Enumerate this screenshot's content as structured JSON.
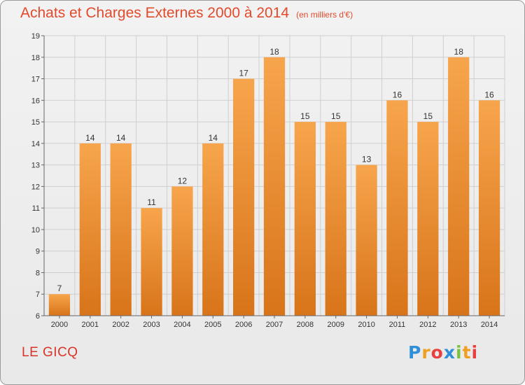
{
  "header": {
    "title": "Achats et Charges Externes 2000 à 2014",
    "unit": "(en milliers d'€)"
  },
  "commune": "LE GICQ",
  "logo": {
    "letters": [
      "P",
      "r",
      "o",
      "x",
      "i",
      "t",
      "i"
    ],
    "colors": [
      "#2f8fd8",
      "#f0a020",
      "#e84040",
      "#2f8fd8",
      "#7cc242",
      "#f0a020",
      "#e84040"
    ]
  },
  "colors": {
    "bar_top": "#f7a54c",
    "bar_bottom": "#d8741a",
    "grid": "#cfcfcf",
    "title": "#e24a2c"
  },
  "chart_data": {
    "type": "bar",
    "title": "Achats et Charges Externes 2000 à 2014",
    "xlabel": "",
    "ylabel": "",
    "categories": [
      "2000",
      "2001",
      "2002",
      "2003",
      "2004",
      "2005",
      "2006",
      "2007",
      "2008",
      "2009",
      "2010",
      "2011",
      "2012",
      "2013",
      "2014"
    ],
    "values": [
      7,
      14,
      14,
      11,
      12,
      14,
      17,
      18,
      15,
      15,
      13,
      16,
      15,
      18,
      16
    ],
    "ylim": [
      6,
      19
    ],
    "yticks": [
      6,
      7,
      8,
      9,
      10,
      11,
      12,
      13,
      14,
      15,
      16,
      17,
      18,
      19
    ],
    "grid": true
  }
}
